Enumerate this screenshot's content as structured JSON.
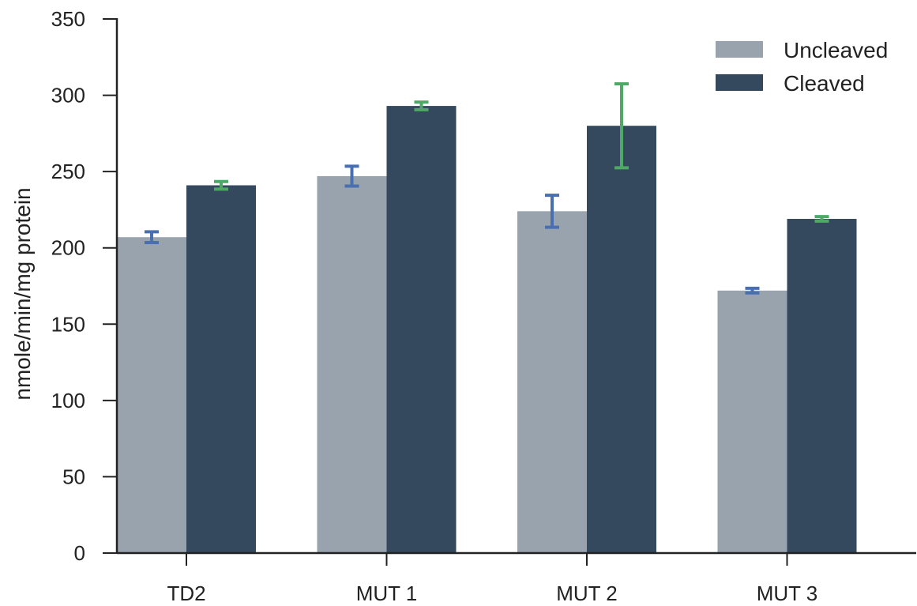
{
  "chart_data": {
    "type": "bar",
    "title": "",
    "xlabel": "",
    "ylabel": "nmole/min/mg protein",
    "categories": [
      "TD2",
      "MUT 1",
      "MUT 2",
      "MUT 3"
    ],
    "ylim": [
      0,
      350
    ],
    "yticks": [
      0,
      50,
      100,
      150,
      200,
      250,
      300,
      350
    ],
    "grid": false,
    "legend_position": "top-right",
    "series": [
      {
        "name": "Uncleaved",
        "color": "#98a3ae",
        "error_color": "#4a6fb0",
        "values": [
          207,
          247,
          224,
          172
        ],
        "errors": [
          3.5,
          6.5,
          10.5,
          1.5
        ]
      },
      {
        "name": "Cleaved",
        "color": "#34495e",
        "error_color": "#4fa865",
        "values": [
          241,
          293,
          280,
          219
        ],
        "errors": [
          2.5,
          2.5,
          27.5,
          1.5
        ]
      }
    ]
  }
}
